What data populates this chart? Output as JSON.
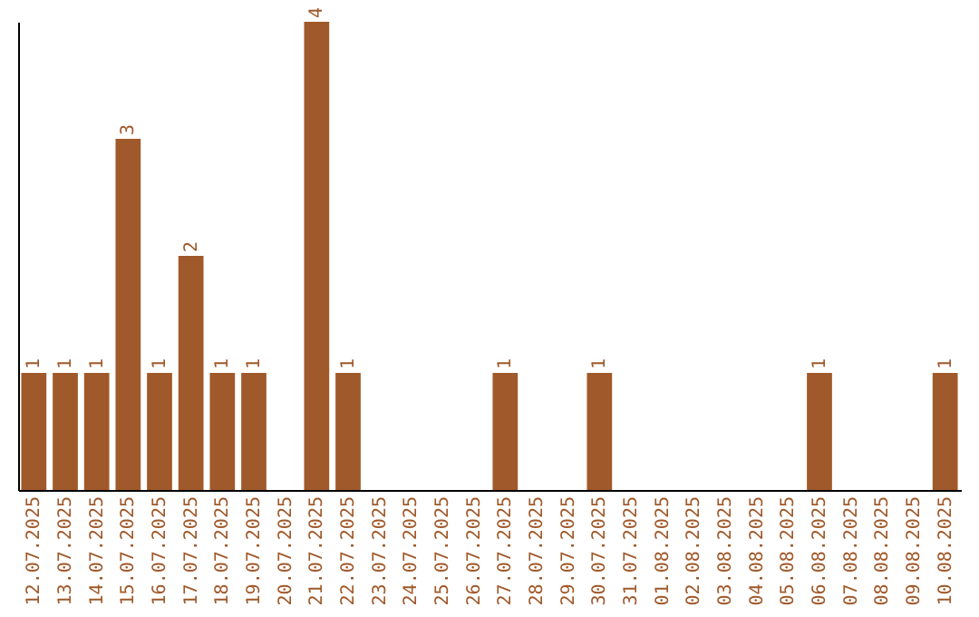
{
  "chart_data": {
    "type": "bar",
    "categories": [
      "12.07.2025",
      "13.07.2025",
      "14.07.2025",
      "15.07.2025",
      "16.07.2025",
      "17.07.2025",
      "18.07.2025",
      "19.07.2025",
      "20.07.2025",
      "21.07.2025",
      "22.07.2025",
      "23.07.2025",
      "24.07.2025",
      "25.07.2025",
      "26.07.2025",
      "27.07.2025",
      "28.07.2025",
      "29.07.2025",
      "30.07.2025",
      "31.07.2025",
      "01.08.2025",
      "02.08.2025",
      "03.08.2025",
      "04.08.2025",
      "05.08.2025",
      "06.08.2025",
      "07.08.2025",
      "08.08.2025",
      "09.08.2025",
      "10.08.2025"
    ],
    "values": [
      1,
      1,
      1,
      3,
      1,
      2,
      1,
      1,
      0,
      4,
      1,
      0,
      0,
      0,
      0,
      1,
      0,
      0,
      1,
      0,
      0,
      0,
      0,
      0,
      0,
      1,
      0,
      0,
      0,
      1
    ],
    "value_labels": [
      "1",
      "1",
      "1",
      "3",
      "1",
      "2",
      "1",
      "1",
      null,
      "4",
      "1",
      null,
      null,
      null,
      null,
      "1",
      null,
      null,
      "1",
      null,
      null,
      null,
      null,
      null,
      null,
      "1",
      null,
      null,
      null,
      "1"
    ],
    "color": "#a0592a"
  }
}
